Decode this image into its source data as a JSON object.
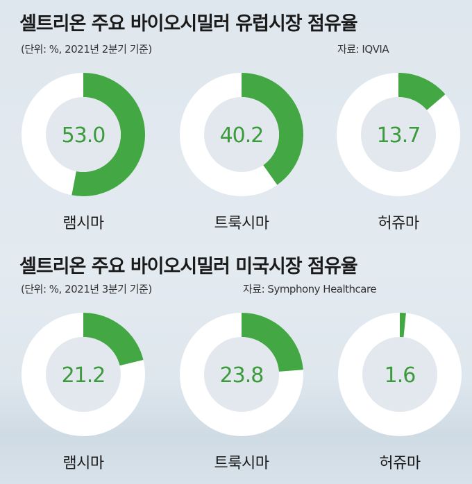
{
  "colors": {
    "accent": "#43a843",
    "track": "#ffffff",
    "center": "#e3e8ef",
    "value_text": "#3b9a3b"
  },
  "chart_data": [
    {
      "type": "pie",
      "title": "셀트리온 주요 바이오시밀러 유럽시장 점유율",
      "unit_note": "(단위: %, 2021년 2분기 기준)",
      "source": "자료: IQVIA",
      "categories": [
        "램시마",
        "트룩시마",
        "허쥬마"
      ],
      "values": [
        53.0,
        40.2,
        13.7
      ],
      "value_labels": [
        "53.0",
        "40.2",
        "13.7"
      ]
    },
    {
      "type": "pie",
      "title": "셀트리온 주요 바이오시밀러 미국시장 점유율",
      "unit_note": "(단위: %, 2021년 3분기 기준)",
      "source": "자료: Symphony Healthcare",
      "categories": [
        "램시마",
        "트룩시마",
        "허쥬마"
      ],
      "values": [
        21.2,
        23.8,
        1.6
      ],
      "value_labels": [
        "21.2",
        "23.8",
        "1.6"
      ]
    }
  ]
}
